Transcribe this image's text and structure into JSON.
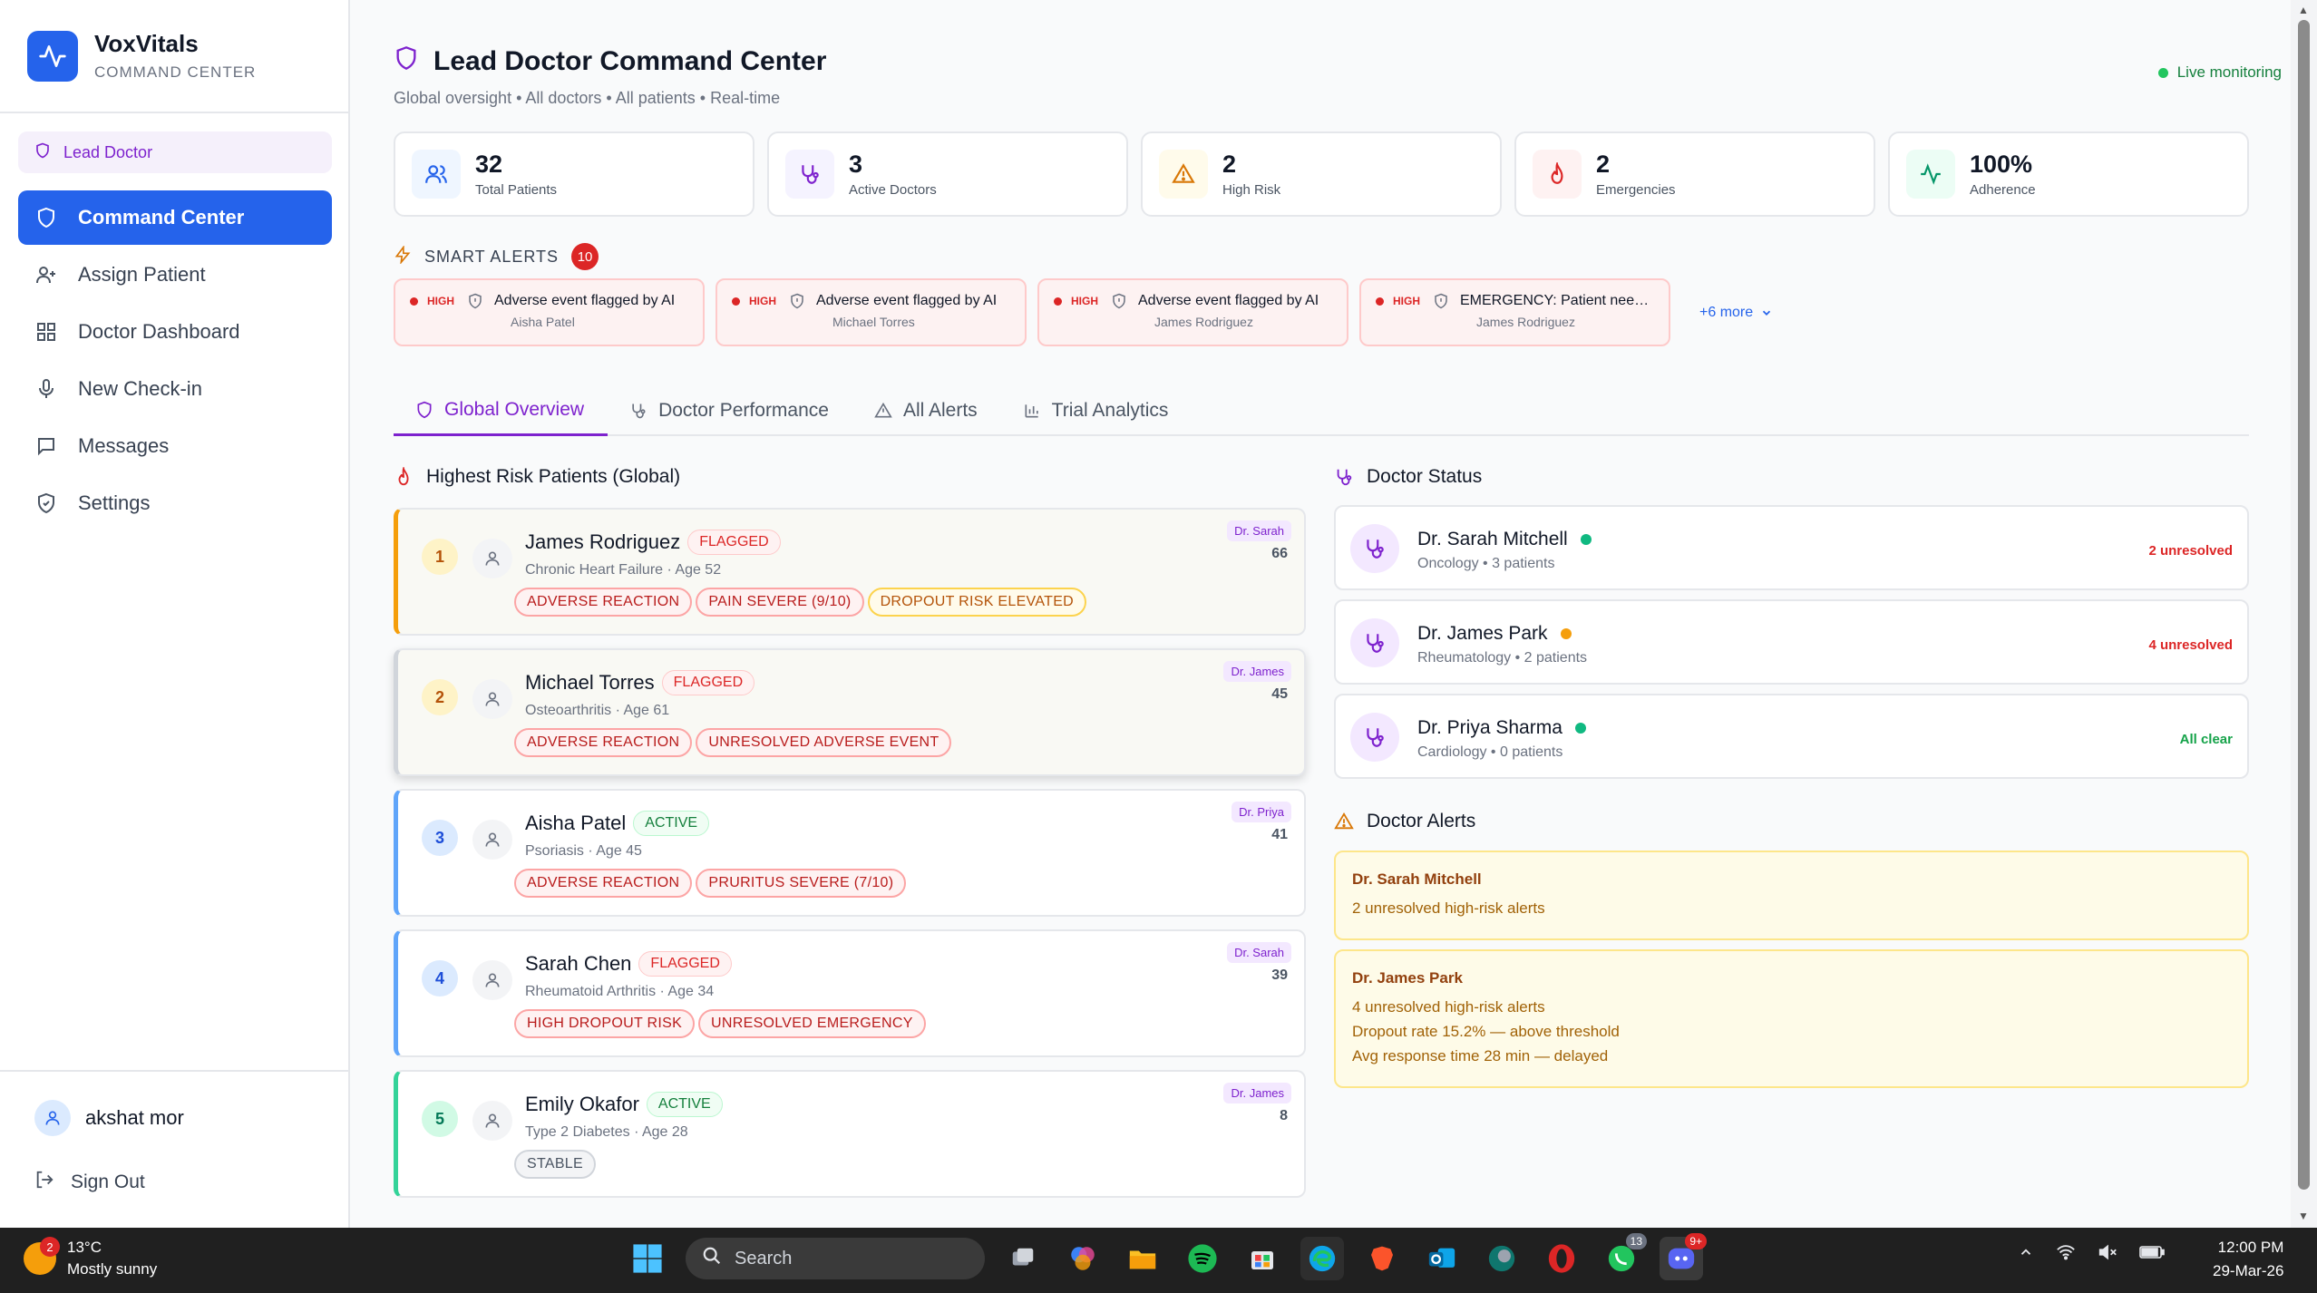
{
  "brand": {
    "name": "VoxVitals",
    "subtitle": "COMMAND CENTER"
  },
  "role_badge": "Lead Doctor",
  "nav": [
    {
      "label": "Command Center",
      "icon": "shield-icon",
      "active": true
    },
    {
      "label": "Assign Patient",
      "icon": "user-plus-icon"
    },
    {
      "label": "Doctor Dashboard",
      "icon": "grid-icon"
    },
    {
      "label": "New Check-in",
      "icon": "mic-icon"
    },
    {
      "label": "Messages",
      "icon": "message-icon"
    },
    {
      "label": "Settings",
      "icon": "shield-check-icon"
    }
  ],
  "user": {
    "name": "akshat mor",
    "signout": "Sign Out"
  },
  "header": {
    "title": "Lead Doctor Command Center",
    "subtitle": "Global oversight • All doctors • All patients • Real-time",
    "live": "Live monitoring"
  },
  "stats": [
    {
      "value": "32",
      "label": "Total Patients",
      "icon": "users-icon",
      "bg": "#eff6ff",
      "color": "#2563eb"
    },
    {
      "value": "3",
      "label": "Active Doctors",
      "icon": "stethoscope-icon",
      "bg": "#f5f3ff",
      "color": "#7e22ce"
    },
    {
      "value": "2",
      "label": "High Risk",
      "icon": "warning-icon",
      "bg": "#fffbeb",
      "color": "#d97706"
    },
    {
      "value": "2",
      "label": "Emergencies",
      "icon": "flame-icon",
      "bg": "#fef2f2",
      "color": "#dc2626"
    },
    {
      "value": "100%",
      "label": "Adherence",
      "icon": "activity-icon",
      "bg": "#ecfdf5",
      "color": "#059669"
    }
  ],
  "smart_alerts": {
    "title": "SMART ALERTS",
    "count": "10",
    "items": [
      {
        "severity": "HIGH",
        "message": "Adverse event flagged by AI",
        "patient": "Aisha Patel",
        "icon": "shield-icon"
      },
      {
        "severity": "HIGH",
        "message": "Adverse event flagged by AI",
        "patient": "Michael Torres",
        "icon": "shield-icon"
      },
      {
        "severity": "HIGH",
        "message": "Adverse event flagged by AI",
        "patient": "James Rodriguez",
        "icon": "shield-icon"
      },
      {
        "severity": "HIGH",
        "message": "EMERGENCY: Patient needs imm...",
        "patient": "James Rodriguez",
        "icon": "shield-icon"
      }
    ],
    "more": "+6 more"
  },
  "tabs": [
    {
      "label": "Global Overview",
      "icon": "shield-icon",
      "active": true
    },
    {
      "label": "Doctor Performance",
      "icon": "stethoscope-icon"
    },
    {
      "label": "All Alerts",
      "icon": "warning-icon"
    },
    {
      "label": "Trial Analytics",
      "icon": "bar-chart-icon"
    }
  ],
  "risk_section": {
    "title": "Highest Risk Patients (Global)"
  },
  "patients": [
    {
      "rank": "1",
      "name": "James Rodriguez",
      "status": "FLAGGED",
      "condition": "Chronic Heart Failure · Age 52",
      "doctor": "Dr. Sarah",
      "score": "66",
      "tags": [
        {
          "text": "ADVERSE REACTION",
          "kind": "red"
        },
        {
          "text": "PAIN SEVERE (9/10)",
          "kind": "red"
        },
        {
          "text": "DROPOUT RISK ELEVATED",
          "kind": "amber"
        }
      ],
      "accent": "#f59e0b",
      "rank_bg": "#fef3c7",
      "rank_color": "#b45309"
    },
    {
      "rank": "2",
      "name": "Michael Torres",
      "status": "FLAGGED",
      "condition": "Osteoarthritis · Age 61",
      "doctor": "Dr. James",
      "score": "45",
      "tags": [
        {
          "text": "ADVERSE REACTION",
          "kind": "red"
        },
        {
          "text": "UNRESOLVED ADVERSE EVENT",
          "kind": "red"
        }
      ],
      "accent": "#d1d5db",
      "rank_bg": "#fef3c7",
      "rank_color": "#b45309"
    },
    {
      "rank": "3",
      "name": "Aisha Patel",
      "status": "ACTIVE",
      "condition": "Psoriasis · Age 45",
      "doctor": "Dr. Priya",
      "score": "41",
      "tags": [
        {
          "text": "ADVERSE REACTION",
          "kind": "red"
        },
        {
          "text": "PRURITUS SEVERE (7/10)",
          "kind": "red"
        }
      ],
      "accent": "#60a5fa",
      "rank_bg": "#dbeafe",
      "rank_color": "#1d4ed8"
    },
    {
      "rank": "4",
      "name": "Sarah Chen",
      "status": "FLAGGED",
      "condition": "Rheumatoid Arthritis · Age 34",
      "doctor": "Dr. Sarah",
      "score": "39",
      "tags": [
        {
          "text": "HIGH DROPOUT RISK",
          "kind": "red"
        },
        {
          "text": "UNRESOLVED EMERGENCY",
          "kind": "red"
        }
      ],
      "accent": "#60a5fa",
      "rank_bg": "#dbeafe",
      "rank_color": "#1d4ed8"
    },
    {
      "rank": "5",
      "name": "Emily Okafor",
      "status": "ACTIVE",
      "condition": "Type 2 Diabetes · Age 28",
      "doctor": "Dr. James",
      "score": "8",
      "tags": [
        {
          "text": "STABLE",
          "kind": "gray"
        }
      ],
      "accent": "#34d399",
      "rank_bg": "#d1fae5",
      "rank_color": "#047857"
    }
  ],
  "doctor_status": {
    "title": "Doctor Status",
    "items": [
      {
        "name": "Dr. Sarah Mitchell",
        "sub": "Oncology • 3 patients",
        "status": "2 unresolved",
        "status_color": "#dc2626",
        "dot": "#10b981"
      },
      {
        "name": "Dr. James Park",
        "sub": "Rheumatology • 2 patients",
        "status": "4 unresolved",
        "status_color": "#dc2626",
        "dot": "#f59e0b"
      },
      {
        "name": "Dr. Priya Sharma",
        "sub": "Cardiology • 0 patients",
        "status": "All clear",
        "status_color": "#16a34a",
        "dot": "#10b981"
      }
    ]
  },
  "doctor_alerts": {
    "title": "Doctor Alerts",
    "items": [
      {
        "name": "Dr. Sarah Mitchell",
        "lines": [
          "2 unresolved high-risk alerts"
        ]
      },
      {
        "name": "Dr. James Park",
        "lines": [
          "4 unresolved high-risk alerts",
          "Dropout rate 15.2% — above threshold",
          "Avg response time 28 min — delayed"
        ]
      }
    ]
  },
  "taskbar": {
    "weather_temp": "13°C",
    "weather_desc": "Mostly sunny",
    "weather_badge": "2",
    "search": "Search",
    "time": "12:00 PM",
    "date": "29-Mar-26",
    "whatsapp_badge": "13",
    "discord_badge": "9+"
  }
}
